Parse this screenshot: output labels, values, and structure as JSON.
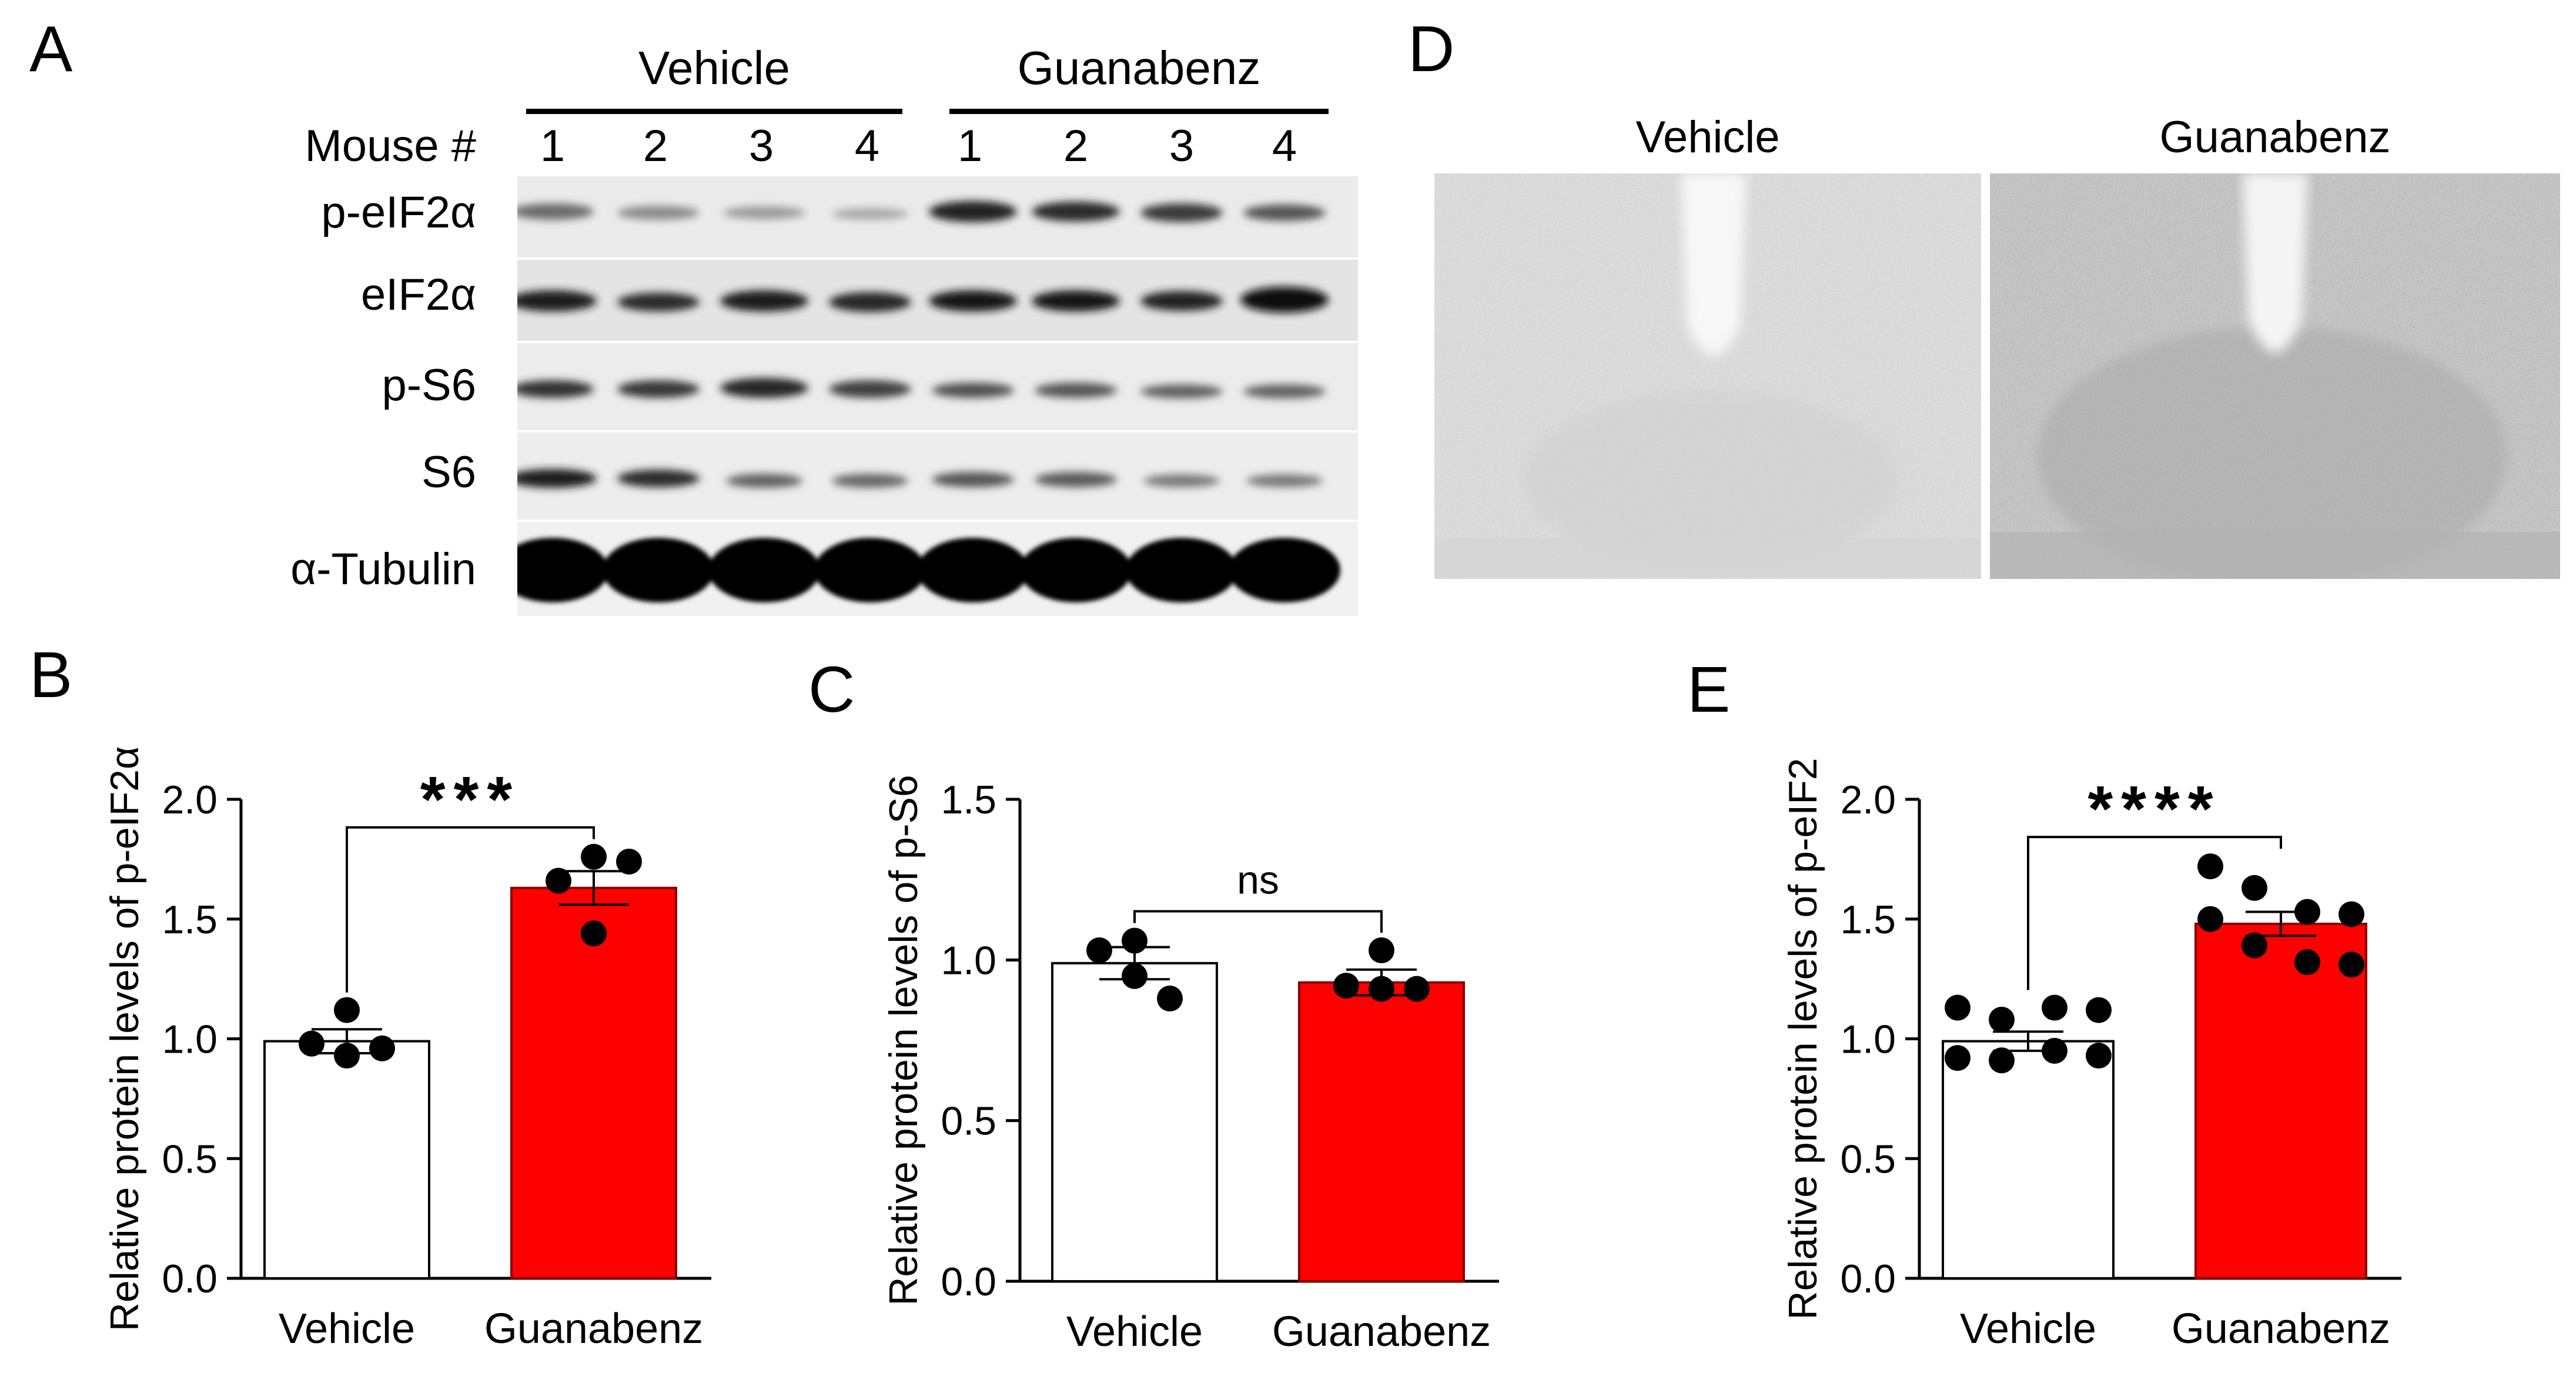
{
  "panels": {
    "A": "A",
    "B": "B",
    "C": "C",
    "D": "D",
    "E": "E"
  },
  "blot": {
    "groups": [
      "Vehicle",
      "Guanabenz"
    ],
    "mouse_label": "Mouse #",
    "lanes": [
      "1",
      "2",
      "3",
      "4",
      "1",
      "2",
      "3",
      "4"
    ],
    "rows": [
      "p-eIF2α",
      "eIF2α",
      "p-S6",
      "S6",
      "α-Tubulin"
    ]
  },
  "micrographs": {
    "left_label": "Vehicle",
    "right_label": "Guanabenz"
  },
  "chart_data": [
    {
      "panel": "B",
      "type": "bar",
      "categories": [
        "Vehicle",
        "Guanabenz"
      ],
      "values": [
        0.99,
        1.63
      ],
      "sem": [
        0.05,
        0.07
      ],
      "points": [
        [
          1.12,
          0.98,
          0.93,
          0.96
        ],
        [
          1.76,
          1.74,
          1.66,
          1.44
        ]
      ],
      "colors": [
        "#ffffff",
        "#ff0000"
      ],
      "ylabel": "Relative protein levels of p-eIF2α",
      "ylim": [
        0,
        2.0
      ],
      "yticks": [
        "0.0",
        "0.5",
        "1.0",
        "1.5",
        "2.0"
      ],
      "significance": "***"
    },
    {
      "panel": "C",
      "type": "bar",
      "categories": [
        "Vehicle",
        "Guanabenz"
      ],
      "values": [
        0.99,
        0.93
      ],
      "sem": [
        0.05,
        0.04
      ],
      "points": [
        [
          1.06,
          1.03,
          0.95,
          0.88
        ],
        [
          1.03,
          0.91,
          0.92,
          0.91
        ]
      ],
      "colors": [
        "#ffffff",
        "#ff0000"
      ],
      "ylabel": "Relative protein levels of p-S6",
      "ylim": [
        0,
        1.5
      ],
      "yticks": [
        "0.0",
        "0.5",
        "1.0",
        "1.5"
      ],
      "significance": "ns"
    },
    {
      "panel": "E",
      "type": "bar",
      "categories": [
        "Vehicle",
        "Guanabenz"
      ],
      "values": [
        0.99,
        1.48
      ],
      "sem": [
        0.04,
        0.05
      ],
      "points": [
        [
          1.13,
          1.08,
          1.13,
          1.12,
          0.92,
          0.91,
          0.95,
          0.93
        ],
        [
          1.72,
          1.63,
          1.53,
          1.52,
          1.5,
          1.39,
          1.32,
          1.31
        ]
      ],
      "colors": [
        "#ffffff",
        "#ff0000"
      ],
      "ylabel": "Relative protein levels of p-eIF2",
      "ylim": [
        0,
        2.0
      ],
      "yticks": [
        "0.0",
        "0.5",
        "1.0",
        "1.5",
        "2.0"
      ],
      "significance": "****"
    }
  ]
}
